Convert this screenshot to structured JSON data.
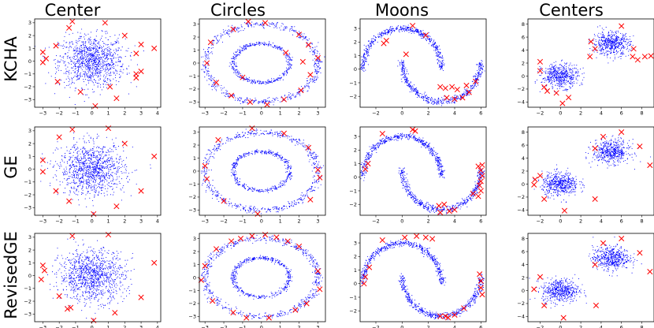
{
  "figure": {
    "column_titles": [
      "Center",
      "Circles",
      "Moons",
      "Centers"
    ],
    "row_titles": [
      "KCHA",
      "GE",
      "RevisedGE"
    ]
  },
  "colors": {
    "data_points": "#0000ff",
    "selected_points": "#ff0000",
    "frame": "#000000"
  },
  "chart_data": [
    {
      "type": "scatter",
      "dataset": "Center",
      "method": "KCHA",
      "xlim": [
        -3.5,
        4.2
      ],
      "ylim": [
        -3.6,
        3.3
      ],
      "xticks": [
        -3,
        -2,
        -1,
        0,
        1,
        2,
        3,
        4
      ],
      "yticks": [
        -3,
        -2,
        -1,
        0,
        1,
        2,
        3
      ],
      "series": [
        {
          "marker": "dot"
        },
        {
          "marker": "x",
          "points": [
            [
              -1.2,
              3.1
            ],
            [
              0.8,
              3.0
            ],
            [
              -1.4,
              2.6
            ],
            [
              2.0,
              2.0
            ],
            [
              3.0,
              1.3
            ],
            [
              -3.0,
              0.7
            ],
            [
              2.7,
              0.6
            ],
            [
              -2.2,
              1.2
            ],
            [
              3.8,
              1.0
            ],
            [
              -3.0,
              -0.1
            ],
            [
              3.0,
              -0.8
            ],
            [
              2.7,
              -1.0
            ],
            [
              -2.1,
              -1.6
            ],
            [
              2.7,
              -1.3
            ],
            [
              -0.7,
              -2.4
            ],
            [
              1.1,
              -2.0
            ],
            [
              1.5,
              -2.9
            ],
            [
              0.2,
              -3.5
            ],
            [
              -2.8,
              0.2
            ]
          ]
        }
      ]
    },
    {
      "type": "scatter",
      "dataset": "Circles",
      "method": "KCHA",
      "xlim": [
        -3.3,
        3.4
      ],
      "ylim": [
        -3.4,
        3.4
      ],
      "xticks": [
        -3,
        -2,
        -1,
        0,
        1,
        2,
        3
      ],
      "yticks": [
        -3,
        -2,
        -1,
        0,
        1,
        2,
        3
      ],
      "series": [
        {
          "marker": "dot"
        },
        {
          "marker": "x",
          "points": [
            [
              -0.7,
              3.2
            ],
            [
              0.2,
              3.1
            ],
            [
              -1.5,
              2.6
            ],
            [
              2.0,
              2.2
            ],
            [
              -2.7,
              1.6
            ],
            [
              2.5,
              1.4
            ],
            [
              -2.9,
              0.0
            ],
            [
              3.0,
              0.4
            ],
            [
              2.6,
              -0.9
            ],
            [
              -2.4,
              -1.5
            ],
            [
              2.1,
              -2.1
            ],
            [
              -1.6,
              -2.5
            ],
            [
              1.2,
              -2.8
            ],
            [
              -0.6,
              -3.0
            ],
            [
              0.3,
              -3.2
            ],
            [
              -1.0,
              -1.1
            ],
            [
              1.3,
              0.8
            ],
            [
              2.2,
              0.1
            ]
          ]
        }
      ]
    },
    {
      "type": "scatter",
      "dataset": "Moons",
      "method": "KCHA",
      "xlim": [
        -3.2,
        6.4
      ],
      "ylim": [
        -2.8,
        3.7
      ],
      "xticks": [
        -2,
        0,
        2,
        4,
        6
      ],
      "yticks": [
        -2,
        -1,
        0,
        1,
        2,
        3
      ],
      "series": [
        {
          "marker": "dot"
        },
        {
          "marker": "x",
          "points": [
            [
              -1.2,
              2.1
            ],
            [
              -1.4,
              1.9
            ],
            [
              0.8,
              3.2
            ],
            [
              1.8,
              2.5
            ],
            [
              0.3,
              1.1
            ],
            [
              2.9,
              -1.3
            ],
            [
              3.3,
              -1.4
            ],
            [
              3.8,
              -1.3
            ],
            [
              4.2,
              -1.5
            ],
            [
              4.9,
              -1.2
            ],
            [
              5.6,
              -0.9
            ],
            [
              3.4,
              -2.1
            ],
            [
              4.0,
              -2.2
            ],
            [
              4.6,
              -2.1
            ],
            [
              5.1,
              -1.7
            ]
          ]
        }
      ]
    },
    {
      "type": "scatter",
      "dataset": "Centers",
      "method": "KCHA",
      "xlim": [
        -3.2,
        9.2
      ],
      "ylim": [
        -4.8,
        8.8
      ],
      "xticks": [
        -2,
        0,
        2,
        4,
        6,
        8
      ],
      "yticks": [
        -4,
        -2,
        0,
        2,
        4,
        6,
        8
      ],
      "series": [
        {
          "marker": "dot"
        },
        {
          "marker": "x",
          "points": [
            [
              -2.0,
              2.2
            ],
            [
              -1.3,
              -2.3
            ],
            [
              0.2,
              -4.2
            ],
            [
              0.8,
              -3.3
            ],
            [
              -0.4,
              -2.6
            ],
            [
              3.0,
              5.3
            ],
            [
              3.4,
              4.2
            ],
            [
              2.9,
              3.0
            ],
            [
              6.0,
              7.7
            ],
            [
              7.1,
              3.0
            ],
            [
              7.6,
              2.5
            ],
            [
              8.3,
              3.0
            ],
            [
              8.9,
              3.1
            ],
            [
              7.2,
              4.2
            ],
            [
              -1.6,
              -1.7
            ],
            [
              -2.0,
              0.8
            ]
          ]
        }
      ]
    },
    {
      "type": "scatter",
      "dataset": "Center",
      "method": "GE",
      "xlim": [
        -3.5,
        4.2
      ],
      "ylim": [
        -3.6,
        3.3
      ],
      "xticks": [
        -3,
        -2,
        -1,
        0,
        1,
        2,
        3,
        4
      ],
      "yticks": [
        -3,
        -2,
        -1,
        0,
        1,
        2,
        3
      ],
      "series": [
        {
          "marker": "dot"
        },
        {
          "marker": "x",
          "points": [
            [
              -1.2,
              3.1
            ],
            [
              1.0,
              3.2
            ],
            [
              -2.0,
              2.5
            ],
            [
              2.0,
              2.0
            ],
            [
              -3.0,
              0.7
            ],
            [
              3.8,
              1.0
            ],
            [
              -3.0,
              -0.2
            ],
            [
              -2.2,
              -1.7
            ],
            [
              3.0,
              -1.7
            ],
            [
              -1.4,
              -2.5
            ],
            [
              1.5,
              -2.9
            ],
            [
              0.1,
              -3.5
            ]
          ]
        }
      ]
    },
    {
      "type": "scatter",
      "dataset": "Circles",
      "method": "GE",
      "xlim": [
        -3.3,
        3.4
      ],
      "ylim": [
        -3.4,
        3.4
      ],
      "xticks": [
        -3,
        -2,
        -1,
        0,
        1,
        2,
        3
      ],
      "yticks": [
        -3,
        -2,
        -1,
        0,
        1,
        2,
        3
      ],
      "series": [
        {
          "marker": "dot"
        },
        {
          "marker": "x",
          "points": [
            [
              -0.5,
              3.3
            ],
            [
              1.2,
              2.9
            ],
            [
              -2.3,
              2.4
            ],
            [
              2.5,
              1.8
            ],
            [
              -3.0,
              0.4
            ],
            [
              3.0,
              0.1
            ],
            [
              3.1,
              -0.5
            ],
            [
              -2.9,
              -0.6
            ],
            [
              2.6,
              -2.2
            ],
            [
              -2.0,
              -2.3
            ],
            [
              -0.2,
              -3.3
            ]
          ]
        }
      ]
    },
    {
      "type": "scatter",
      "dataset": "Moons",
      "method": "GE",
      "xlim": [
        -3.2,
        6.4
      ],
      "ylim": [
        -2.8,
        3.7
      ],
      "xticks": [
        -2,
        0,
        2,
        4,
        6
      ],
      "yticks": [
        -2,
        -1,
        0,
        1,
        2,
        3
      ],
      "series": [
        {
          "marker": "dot"
        },
        {
          "marker": "x",
          "points": [
            [
              -2.6,
              1.0
            ],
            [
              -2.8,
              0.6
            ],
            [
              -1.5,
              3.2
            ],
            [
              0.8,
              3.5
            ],
            [
              1.0,
              3.4
            ],
            [
              2.8,
              -2.1
            ],
            [
              3.2,
              -2.0
            ],
            [
              5.8,
              0.8
            ],
            [
              6.0,
              0.5
            ],
            [
              6.1,
              0.1
            ],
            [
              6.0,
              -0.3
            ],
            [
              5.9,
              -0.6
            ],
            [
              6.0,
              -1.0
            ],
            [
              5.4,
              -1.2
            ],
            [
              4.0,
              -2.4
            ],
            [
              3.6,
              -2.5
            ],
            [
              2.9,
              -2.6
            ],
            [
              5.8,
              -1.4
            ],
            [
              6.1,
              0.9
            ]
          ]
        }
      ]
    },
    {
      "type": "scatter",
      "dataset": "Centers",
      "method": "GE",
      "xlim": [
        -3.2,
        9.2
      ],
      "ylim": [
        -4.8,
        8.8
      ],
      "xticks": [
        -2,
        0,
        2,
        4,
        6,
        8
      ],
      "yticks": [
        -4,
        -2,
        0,
        2,
        4,
        6,
        8
      ],
      "series": [
        {
          "marker": "dot"
        },
        {
          "marker": "x",
          "points": [
            [
              -2.0,
              1.3
            ],
            [
              -2.5,
              0.7
            ],
            [
              -2.6,
              -0.1
            ],
            [
              -1.6,
              -2.3
            ],
            [
              0.4,
              -4.1
            ],
            [
              3.4,
              -2.3
            ],
            [
              3.4,
              5.5
            ],
            [
              4.2,
              7.3
            ],
            [
              6.0,
              8.0
            ],
            [
              7.8,
              5.8
            ],
            [
              8.8,
              2.9
            ]
          ]
        }
      ]
    },
    {
      "type": "scatter",
      "dataset": "Center",
      "method": "RevisedGE",
      "xlim": [
        -3.5,
        4.2
      ],
      "ylim": [
        -3.6,
        3.3
      ],
      "xticks": [
        -3,
        -2,
        -1,
        0,
        1,
        2,
        3,
        4
      ],
      "yticks": [
        -3,
        -2,
        -1,
        0,
        1,
        2,
        3
      ],
      "series": [
        {
          "marker": "dot"
        },
        {
          "marker": "x",
          "points": [
            [
              -1.2,
              3.1
            ],
            [
              1.0,
              3.2
            ],
            [
              -3.0,
              0.8
            ],
            [
              -2.9,
              0.4
            ],
            [
              3.8,
              1.0
            ],
            [
              -3.1,
              -0.3
            ],
            [
              -2.0,
              -1.6
            ],
            [
              3.0,
              -1.7
            ],
            [
              -1.3,
              -2.5
            ],
            [
              -1.5,
              -2.6
            ],
            [
              1.4,
              -2.9
            ],
            [
              0.1,
              -3.5
            ]
          ]
        }
      ]
    },
    {
      "type": "scatter",
      "dataset": "Circles",
      "method": "RevisedGE",
      "xlim": [
        -3.3,
        3.4
      ],
      "ylim": [
        -3.4,
        3.4
      ],
      "xticks": [
        -3,
        -2,
        -1,
        0,
        1,
        2,
        3
      ],
      "yticks": [
        -3,
        -2,
        -1,
        0,
        1,
        2,
        3
      ],
      "series": [
        {
          "marker": "dot"
        },
        {
          "marker": "x",
          "points": [
            [
              -1.6,
              2.8
            ],
            [
              -1.1,
              3.0
            ],
            [
              -0.5,
              3.2
            ],
            [
              0.2,
              3.3
            ],
            [
              0.8,
              3.1
            ],
            [
              1.4,
              2.8
            ],
            [
              2.0,
              2.4
            ],
            [
              -2.4,
              2.2
            ],
            [
              -3.0,
              0.9
            ],
            [
              3.0,
              0.5
            ],
            [
              -3.2,
              -0.2
            ],
            [
              3.1,
              -0.9
            ],
            [
              -2.6,
              -1.8
            ],
            [
              2.4,
              -2.0
            ],
            [
              -1.5,
              -2.7
            ],
            [
              1.8,
              -2.5
            ],
            [
              0.4,
              -3.1
            ],
            [
              -0.8,
              -3.1
            ]
          ]
        }
      ]
    },
    {
      "type": "scatter",
      "dataset": "Moons",
      "method": "RevisedGE",
      "xlim": [
        -3.2,
        6.4
      ],
      "ylim": [
        -2.8,
        3.7
      ],
      "xticks": [
        -2,
        0,
        2,
        4,
        6
      ],
      "yticks": [
        -2,
        -1,
        0,
        1,
        2,
        3
      ],
      "series": [
        {
          "marker": "dot"
        },
        {
          "marker": "x",
          "points": [
            [
              -2.5,
              1.2
            ],
            [
              -2.8,
              0.5
            ],
            [
              -2.9,
              0.0
            ],
            [
              -1.5,
              3.2
            ],
            [
              0.2,
              3.4
            ],
            [
              1.1,
              3.5
            ],
            [
              1.8,
              3.4
            ],
            [
              2.3,
              3.3
            ],
            [
              2.9,
              -2.4
            ],
            [
              3.3,
              -2.4
            ],
            [
              5.9,
              0.7
            ],
            [
              6.0,
              0.2
            ],
            [
              6.0,
              -0.3
            ],
            [
              6.1,
              -0.8
            ],
            [
              4.7,
              -1.8
            ],
            [
              4.0,
              -2.3
            ],
            [
              3.5,
              -2.5
            ]
          ]
        }
      ]
    },
    {
      "type": "scatter",
      "dataset": "Centers",
      "method": "RevisedGE",
      "xlim": [
        -3.2,
        9.2
      ],
      "ylim": [
        -4.8,
        8.8
      ],
      "xticks": [
        -2,
        0,
        2,
        4,
        6,
        8
      ],
      "yticks": [
        -4,
        -2,
        0,
        2,
        4,
        6,
        8
      ],
      "series": [
        {
          "marker": "dot"
        },
        {
          "marker": "x",
          "points": [
            [
              -2.0,
              2.1
            ],
            [
              -2.6,
              0.2
            ],
            [
              -1.6,
              -2.3
            ],
            [
              0.3,
              -4.2
            ],
            [
              3.5,
              -2.3
            ],
            [
              3.4,
              4.0
            ],
            [
              4.2,
              7.3
            ],
            [
              6.0,
              8.0
            ],
            [
              7.8,
              5.8
            ],
            [
              8.8,
              2.9
            ]
          ]
        }
      ]
    }
  ]
}
